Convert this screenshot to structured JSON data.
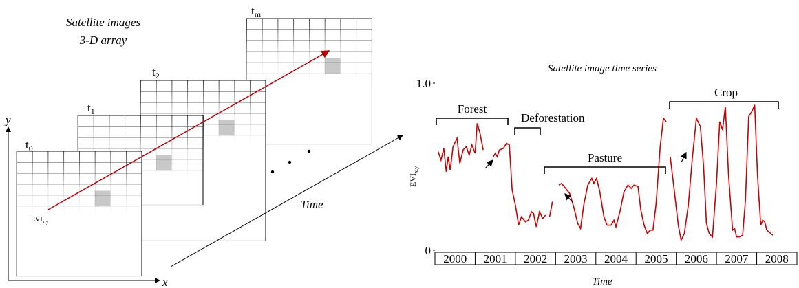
{
  "diagram": {
    "title_lines": [
      "Satellite images",
      "3-D array"
    ],
    "frames": [
      {
        "base": "t",
        "sub": "0"
      },
      {
        "base": "t",
        "sub": "1"
      },
      {
        "base": "t",
        "sub": "2"
      },
      {
        "base": "t",
        "sub": "m"
      }
    ],
    "axes": {
      "x": "x",
      "y": "y"
    },
    "pixel_label": {
      "base": "EVI",
      "sub": "x,y"
    },
    "time_label": "Time"
  },
  "chart_data": {
    "type": "line",
    "title": "Satellite image time series",
    "x_label": "Time",
    "y_label": {
      "base": "EVI",
      "sub": "x,y"
    },
    "categories": [
      "2000",
      "2001",
      "2002",
      "2003",
      "2004",
      "2005",
      "2006",
      "2007",
      "2008"
    ],
    "annotations": [
      "Forest",
      "Deforestation",
      "Pasture",
      "Crop"
    ],
    "xlim": [
      2000,
      2009
    ],
    "ylim": [
      0,
      1
    ],
    "yticks": [
      0,
      {
        "value": 1,
        "label": "1.0"
      }
    ],
    "color": "#cc0000",
    "x": [
      2000.08,
      2000.15,
      2000.22,
      2000.28,
      2000.33,
      2000.38,
      2000.45,
      2000.55,
      2000.62,
      2000.7,
      2000.78,
      2000.85,
      2000.92,
      2001.0,
      2001.05,
      2001.12,
      2001.2,
      2001.3,
      2001.45,
      2001.5,
      2001.55,
      2001.6,
      2001.7,
      2001.78,
      2001.85,
      2001.92,
      2002.0,
      2002.08,
      2002.15,
      2002.25,
      2002.32,
      2002.4,
      2002.45,
      2002.52,
      2002.6,
      2002.68,
      2002.75,
      2002.8,
      2002.85,
      2002.92,
      2003.0,
      2003.08,
      2003.15,
      2003.25,
      2003.35,
      2003.45,
      2003.55,
      2003.62,
      2003.7,
      2003.8,
      2003.9,
      2003.95,
      2004.02,
      2004.1,
      2004.2,
      2004.28,
      2004.38,
      2004.45,
      2004.5,
      2004.6,
      2004.7,
      2004.8,
      2004.88,
      2004.95,
      2005.05,
      2005.12,
      2005.2,
      2005.28,
      2005.35,
      2005.42,
      2005.5,
      2005.6,
      2005.68,
      2005.75,
      2005.8,
      2005.85,
      2005.95,
      2006.05,
      2006.12,
      2006.2,
      2006.3,
      2006.4,
      2006.5,
      2006.6,
      2006.68,
      2006.75,
      2006.82,
      2006.9,
      2007.0,
      2007.08,
      2007.15,
      2007.22,
      2007.3,
      2007.4,
      2007.45,
      2007.5,
      2007.58,
      2007.65,
      2007.72,
      2007.8,
      2007.88,
      2007.95,
      2008.02,
      2008.1,
      2008.15,
      2008.2,
      2008.25,
      2008.35,
      2008.4
    ],
    "values": [
      0.59,
      0.54,
      0.61,
      0.47,
      0.56,
      0.48,
      0.62,
      0.67,
      0.52,
      0.6,
      0.62,
      0.57,
      0.63,
      0.58,
      0.76,
      0.7,
      0.6,
      null,
      0.56,
      0.58,
      0.56,
      0.6,
      0.61,
      0.64,
      0.63,
      0.36,
      0.27,
      0.15,
      0.2,
      0.17,
      0.18,
      0.23,
      0.22,
      0.14,
      0.23,
      0.19,
      0.21,
      null,
      0.2,
      0.29,
      null,
      0.39,
      0.4,
      0.37,
      0.34,
      0.26,
      0.16,
      0.13,
      0.27,
      0.39,
      0.43,
      0.4,
      0.43,
      0.35,
      0.2,
      0.15,
      0.15,
      0.18,
      0.14,
      0.23,
      0.35,
      0.39,
      0.37,
      0.39,
      0.38,
      0.24,
      0.15,
      0.1,
      0.12,
      0.12,
      0.28,
      0.62,
      0.79,
      0.77,
      null,
      0.56,
      0.36,
      0.15,
      0.06,
      0.1,
      0.27,
      0.55,
      0.79,
      0.74,
      0.5,
      0.16,
      0.1,
      0.08,
      0.4,
      0.77,
      0.72,
      0.86,
      0.45,
      0.12,
      0.13,
      0.08,
      0.08,
      0.09,
      0.3,
      0.8,
      0.83,
      0.87,
      0.45,
      0.15,
      0.18,
      0.17,
      0.12,
      0.1,
      0.09
    ]
  }
}
